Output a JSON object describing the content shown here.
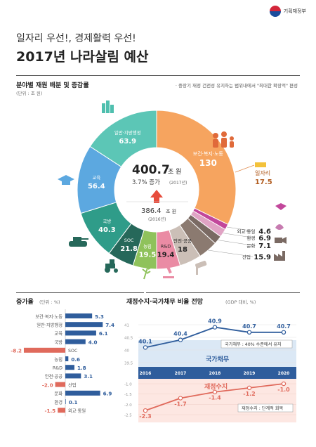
{
  "header": {
    "org": "기획재정부",
    "subtitle": "일자리 우선!, 경제활력 우선!",
    "title": "2017년 나라살림 예산"
  },
  "section1": {
    "title": "분야별 재원 배분 및 증감률",
    "unit": "(단위 : 조 원)",
    "note": "· 중장기 재정 건전성 유지하는 범위내에서 \"최대한 확장적\" 편성"
  },
  "donut": {
    "center_total": "400.7",
    "center_total_unit": "조 원",
    "center_growth": "3.7% 증가",
    "center_growth_year": "(2017년)",
    "center_prev": "386.4",
    "center_prev_unit": "조 원",
    "center_prev_year": "(2016년)",
    "jobs_label": "일자리",
    "jobs_value": "17.5"
  },
  "section2": {
    "title": "증가율",
    "unit": "(단위 : %)"
  },
  "section3": {
    "title": "재정수지·국가채무 비율 전망",
    "unit": "(GDP 대비, %)",
    "debt_label": "국가채무",
    "debt_note": "국가채무 : 40% 수준에서 유지",
    "balance_label": "재정수지",
    "balance_note": "재정수지 : 단계적 회복"
  },
  "chart_data": [
    {
      "type": "pie",
      "title": "분야별 재원 배분 및 증감률",
      "unit": "조 원",
      "categories": [
        "보건·복지·노동",
        "외교·통일",
        "환경",
        "문화",
        "산업",
        "안전·공공",
        "R&D",
        "농림",
        "SOC",
        "국방",
        "교육",
        "일반·지방행정"
      ],
      "values": [
        130,
        4.6,
        6.9,
        7.1,
        15.9,
        18,
        19.4,
        19.5,
        21.8,
        40.3,
        56.4,
        63.9
      ],
      "colors": [
        "#f6a45f",
        "#c2479b",
        "#e0a3c4",
        "#7a6a63",
        "#8b7a70",
        "#cbbfb7",
        "#ea8ba4",
        "#8fc25b",
        "#26685a",
        "#2f9c89",
        "#5ca8e0",
        "#5cc6b6"
      ]
    },
    {
      "type": "bar",
      "title": "증가율",
      "unit": "%",
      "categories": [
        "보건·복지·노동",
        "일반·지방행정",
        "교육",
        "국방",
        "SOC",
        "농림",
        "R&D",
        "안전·공공",
        "산업",
        "문화",
        "환경",
        "외교·통일"
      ],
      "values": [
        5.3,
        7.4,
        6.1,
        4.0,
        -8.2,
        0.6,
        1.8,
        3.1,
        -2.0,
        6.9,
        0.1,
        -1.5
      ],
      "labels": [
        "5.3",
        "7.4",
        "6.1",
        "4.0",
        "-8.2",
        "0.6",
        "1.8",
        "3.1",
        "-2.0",
        "6.9",
        "0.1",
        "-1.5"
      ]
    },
    {
      "type": "line",
      "title": "재정수지·국가채무 비율 전망",
      "unit": "GDP 대비, %",
      "x": [
        "2016",
        "2017",
        "2018",
        "2019",
        "2020"
      ],
      "series": [
        {
          "name": "국가채무",
          "values": [
            40.1,
            40.4,
            40.9,
            40.7,
            40.7
          ],
          "labels": [
            "40.1",
            "40.4",
            "40.9",
            "40.7",
            "40.7"
          ],
          "color": "#2f5d9c"
        },
        {
          "name": "재정수지",
          "values": [
            -2.3,
            -1.7,
            -1.4,
            -1.2,
            -1.0
          ],
          "labels": [
            "-2.3",
            "-1.7",
            "-1.4",
            "-1.2",
            "-1.0"
          ],
          "color": "#e06a5c"
        }
      ],
      "debt_ticks": [
        "41",
        "40.5",
        "40",
        "39.5"
      ],
      "balance_ticks": [
        "-1.0",
        "-1.5",
        "-2.0",
        "-2.5"
      ],
      "ylim_debt": [
        39.5,
        41
      ],
      "ylim_balance": [
        -2.5,
        -1.0
      ]
    }
  ]
}
